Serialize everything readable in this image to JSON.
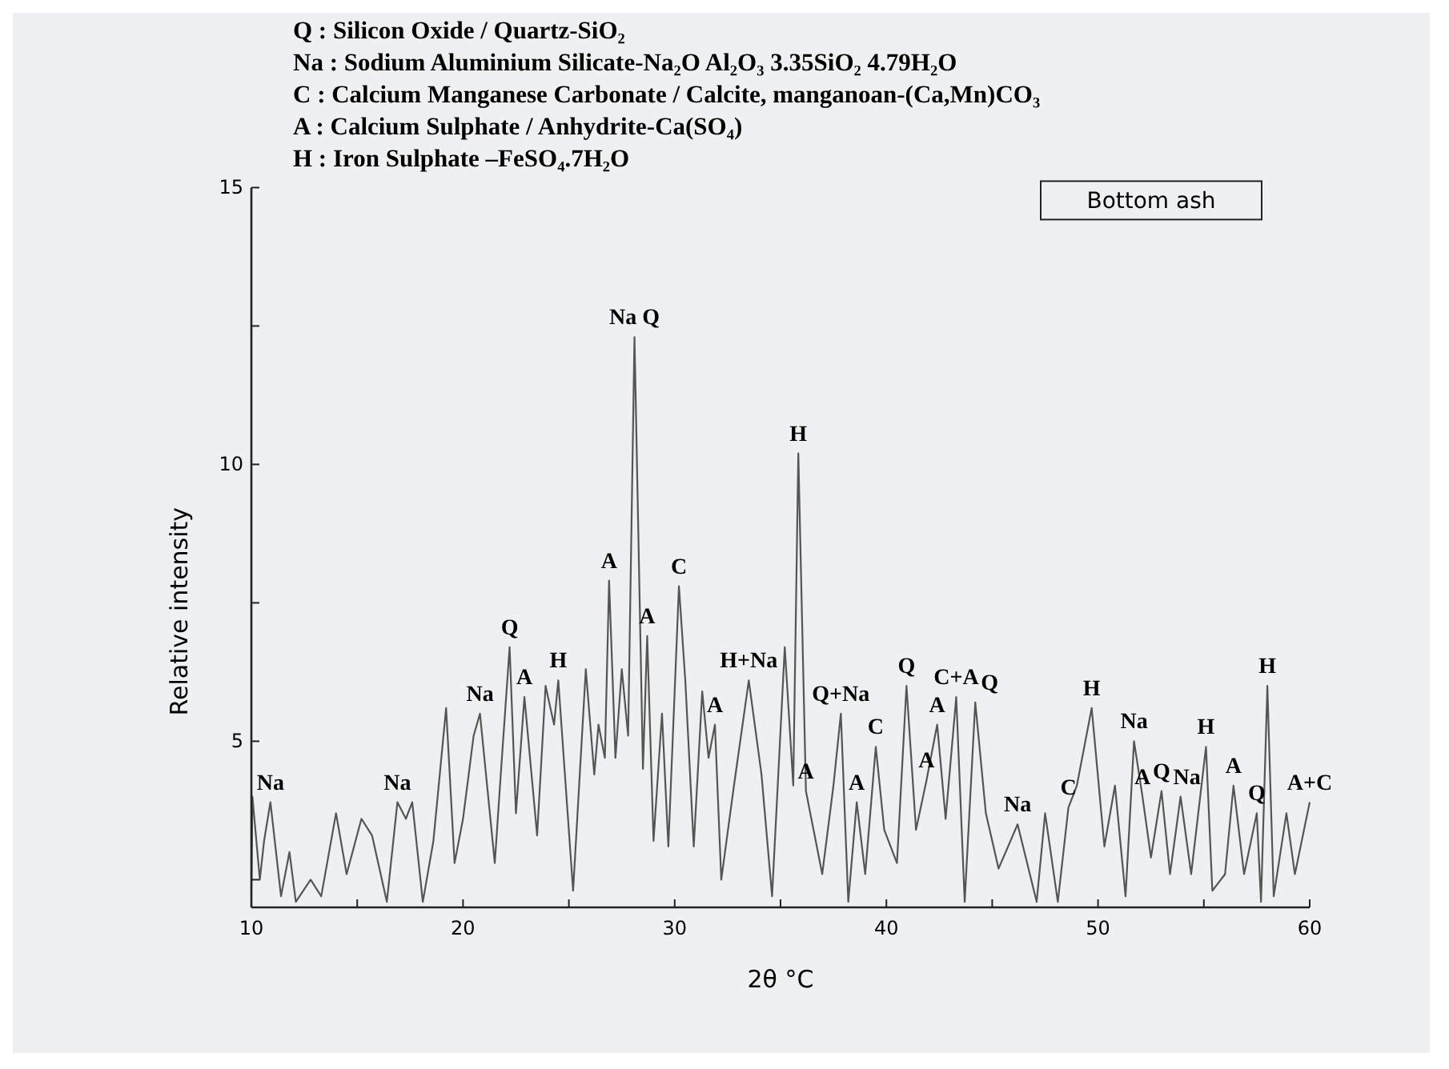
{
  "chart_data": {
    "type": "line",
    "title": "Bottom ash",
    "xlabel": "2θ °C",
    "ylabel": "Relative intensity",
    "xlim": [
      10,
      60
    ],
    "xticks": [
      10,
      {
        "value": 15,
        "label": null
      },
      20,
      {
        "value": 25,
        "label": null
      },
      30,
      {
        "value": 35,
        "label": null
      },
      40,
      {
        "value": 45,
        "label": null
      },
      50,
      {
        "value": 55,
        "label": null
      },
      60
    ],
    "ylim": [
      2,
      15
    ],
    "yticks": [
      {
        "value": 2.5,
        "label": null
      },
      5,
      {
        "value": 7.5,
        "label": null
      },
      10,
      {
        "value": 12.5,
        "label": null
      },
      15
    ],
    "grid": false,
    "marker": "none",
    "line_style": "solid",
    "x": [
      10,
      10.05,
      10.4,
      10.6,
      10.9,
      11.4,
      11.8,
      12.1,
      12.8,
      13.3,
      14.0,
      14.5,
      15.2,
      15.7,
      16.4,
      16.9,
      17.3,
      17.6,
      18.1,
      18.6,
      19.2,
      19.6,
      20.0,
      20.5,
      20.8,
      21.5,
      21.8,
      22.2,
      22.5,
      22.9,
      23.5,
      23.9,
      24.3,
      24.5,
      25.2,
      25.8,
      26.2,
      26.4,
      26.7,
      26.9,
      27.2,
      27.5,
      27.8,
      28.1,
      28.5,
      28.7,
      29.0,
      29.4,
      29.7,
      30.2,
      30.5,
      30.9,
      31.3,
      31.6,
      31.9,
      32.2,
      32.8,
      33.5,
      34.1,
      34.6,
      35.2,
      35.6,
      35.84,
      36.2,
      36.97,
      37.5,
      37.85,
      38.2,
      38.6,
      39.0,
      39.5,
      39.9,
      40.5,
      40.95,
      41.4,
      41.9,
      42.4,
      42.8,
      43.3,
      43.7,
      44.2,
      44.7,
      45.3,
      46.2,
      47.1,
      47.5,
      48.1,
      48.6,
      49.0,
      49.7,
      50.3,
      50.8,
      51.3,
      51.7,
      52.1,
      52.5,
      53.0,
      53.4,
      53.9,
      54.4,
      55.1,
      55.4,
      56.0,
      56.4,
      56.9,
      57.5,
      57.7,
      58.0,
      58.3,
      58.9,
      59.3,
      60.0
    ],
    "series": [
      {
        "color": "#555555",
        "values": [
          2.3,
          4.0,
          2.5,
          3.2,
          3.9,
          2.2,
          3.0,
          2.1,
          2.5,
          2.2,
          3.7,
          2.6,
          3.6,
          3.3,
          2.1,
          3.9,
          3.6,
          3.9,
          2.1,
          3.2,
          5.6,
          2.8,
          3.6,
          5.1,
          5.5,
          2.8,
          4.5,
          6.7,
          3.7,
          5.8,
          3.3,
          6.0,
          5.3,
          6.1,
          2.3,
          6.3,
          4.4,
          5.3,
          4.7,
          7.9,
          4.7,
          6.3,
          5.1,
          12.3,
          4.5,
          6.9,
          3.2,
          5.5,
          3.1,
          7.8,
          6.1,
          3.1,
          5.9,
          4.7,
          5.3,
          2.5,
          4.2,
          6.1,
          4.4,
          2.2,
          6.7,
          4.2,
          10.2,
          4.1,
          2.6,
          4.2,
          5.5,
          2.1,
          3.9,
          2.6,
          4.9,
          3.4,
          2.8,
          6.0,
          3.4,
          4.3,
          5.3,
          3.6,
          5.8,
          2.1,
          5.7,
          3.7,
          2.7,
          3.5,
          2.1,
          3.7,
          2.1,
          3.8,
          4.2,
          5.6,
          3.1,
          4.2,
          2.2,
          5.0,
          4.0,
          2.9,
          4.1,
          2.6,
          4.0,
          2.6,
          4.9,
          2.3,
          2.6,
          4.2,
          2.6,
          3.7,
          2.1,
          6.0,
          2.2,
          3.7,
          2.6,
          3.9
        ]
      }
    ],
    "annotations": [
      "Q : Silicon Oxide / Quartz-SiO₂",
      "Na : Sodium Aluminium Silicate-Na₂O Al₂O₃ 3.35SiO₂ 4.79H₂O",
      "C : Calcium Manganese Carbonate / Calcite, manganoan-(Ca,Mn)CO₃",
      "A : Calcium Sulphate / Anhydrite-Ca(SO₄)",
      "H : Iron Sulphate –FeSO₄.7H₂O",
      {
        "text": "Na",
        "x": 10.9,
        "y": 3.9
      },
      {
        "text": "Na",
        "x": 16.9,
        "y": 3.9
      },
      {
        "text": "Na",
        "x": 20.8,
        "y": 5.5
      },
      {
        "text": "Q",
        "x": 22.2,
        "y": 6.7
      },
      {
        "text": "A",
        "x": 22.9,
        "y": 5.8
      },
      {
        "text": "H",
        "x": 24.5,
        "y": 6.1
      },
      {
        "text": "A",
        "x": 26.9,
        "y": 7.9
      },
      {
        "text": "Na Q",
        "x": 28.1,
        "y": 12.3
      },
      {
        "text": "A",
        "x": 28.7,
        "y": 6.9
      },
      {
        "text": "C",
        "x": 30.2,
        "y": 7.8
      },
      {
        "text": "A",
        "x": 31.9,
        "y": 5.3
      },
      {
        "text": "H+Na",
        "x": 33.5,
        "y": 6.1
      },
      {
        "text": "H",
        "x": 35.84,
        "y": 10.2
      },
      {
        "text": "A",
        "x": 36.2,
        "y": 4.1
      },
      {
        "text": "Q+Na",
        "x": 37.85,
        "y": 5.5
      },
      {
        "text": "A",
        "x": 38.6,
        "y": 3.9
      },
      {
        "text": "C",
        "x": 39.5,
        "y": 4.9
      },
      {
        "text": "Q",
        "x": 40.95,
        "y": 6.0
      },
      {
        "text": "A",
        "x": 41.9,
        "y": 4.3
      },
      {
        "text": "A",
        "x": 42.4,
        "y": 5.3
      },
      {
        "text": "C+A",
        "x": 43.3,
        "y": 5.8
      },
      {
        "text": "Q",
        "x": 44.2,
        "y": 5.7
      },
      {
        "text": "Na",
        "x": 46.2,
        "y": 3.5
      },
      {
        "text": "C",
        "x": 48.6,
        "y": 3.8
      },
      {
        "text": "H",
        "x": 49.7,
        "y": 5.6
      },
      {
        "text": "Na",
        "x": 51.7,
        "y": 5.0
      },
      {
        "text": "A",
        "x": 52.1,
        "y": 4.0
      },
      {
        "text": "Q",
        "x": 53.0,
        "y": 4.1
      },
      {
        "text": "Na",
        "x": 53.9,
        "y": 4.0
      },
      {
        "text": "H",
        "x": 55.1,
        "y": 4.9
      },
      {
        "text": "A",
        "x": 56.4,
        "y": 4.2
      },
      {
        "text": "Q",
        "x": 57.5,
        "y": 3.7
      },
      {
        "text": "H",
        "x": 58.0,
        "y": 6.0
      },
      {
        "text": "A+C",
        "x": 60.0,
        "y": 3.9
      }
    ]
  }
}
